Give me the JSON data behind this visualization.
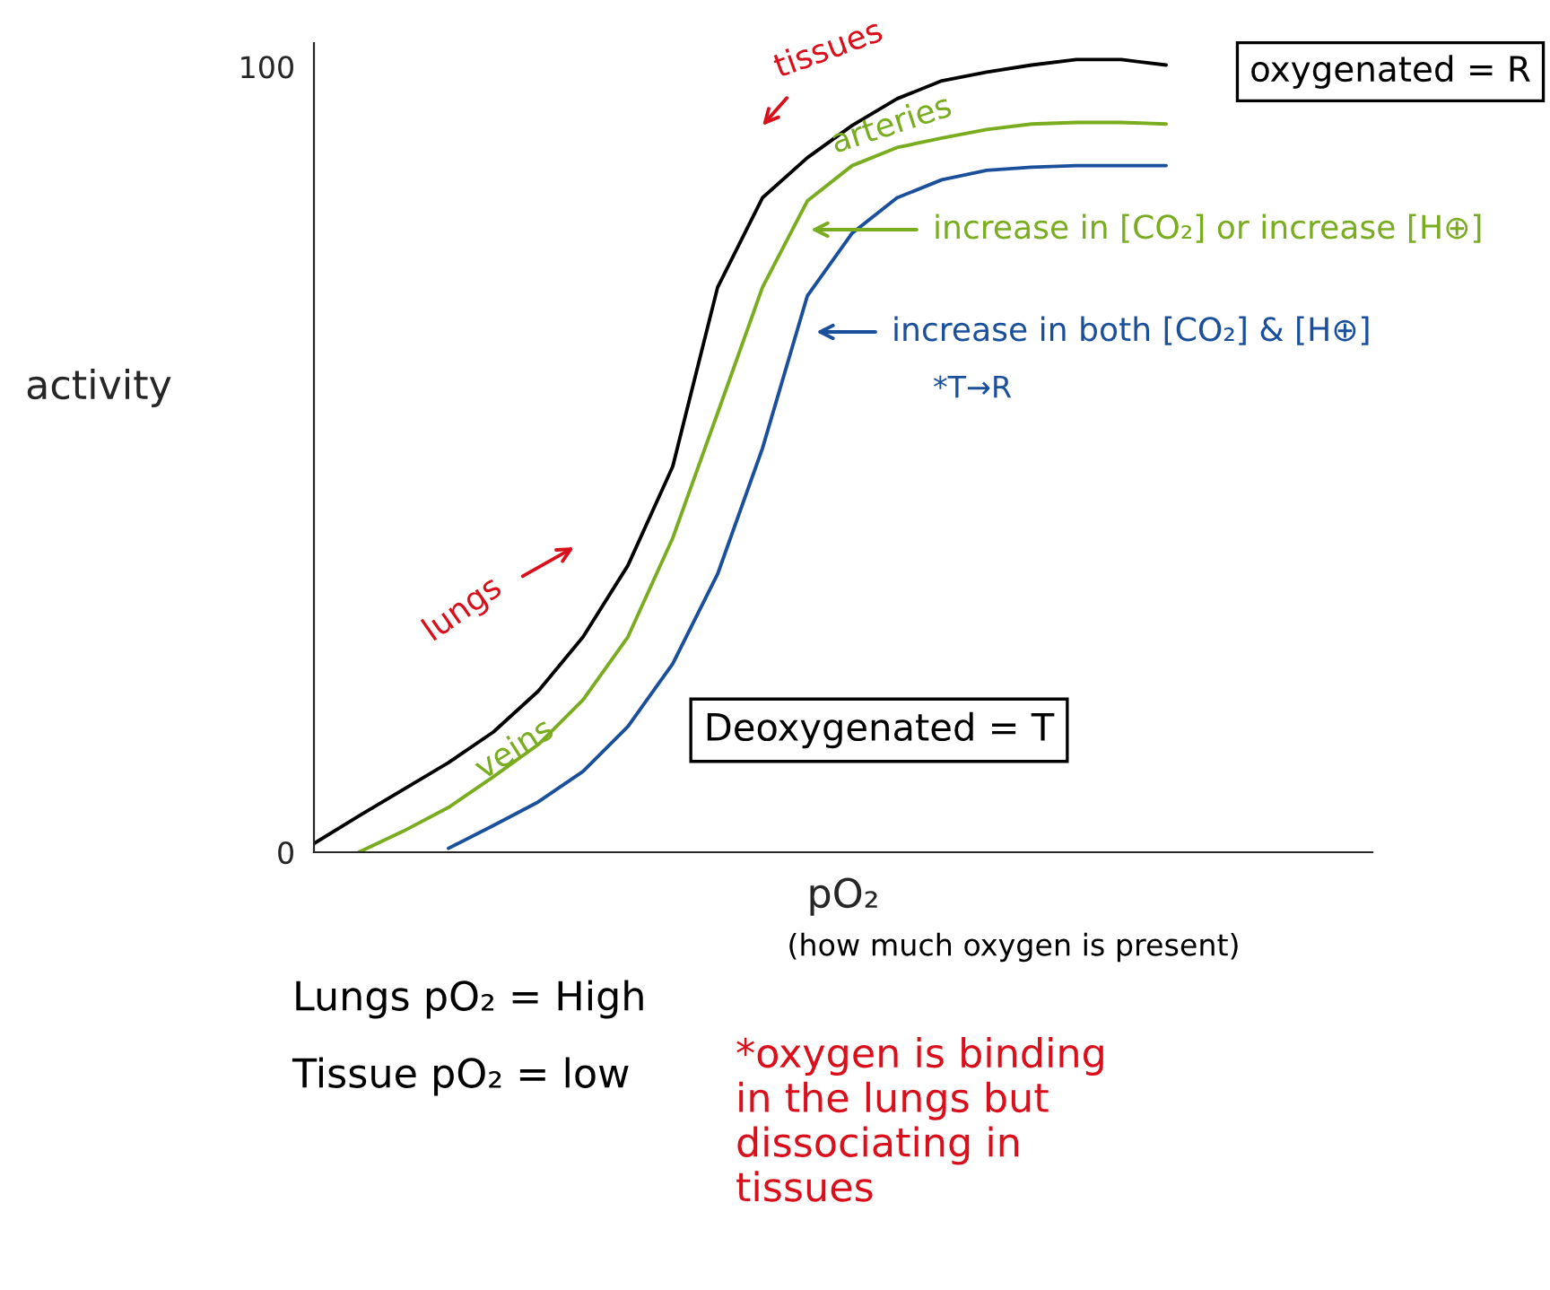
{
  "chart_data": {
    "type": "line",
    "categories": [
      null,
      null,
      null,
      null,
      null,
      null,
      null,
      null,
      null,
      null,
      null,
      null,
      null,
      null,
      null,
      null,
      null,
      null,
      null,
      null,
      null,
      null,
      null,
      null
    ],
    "series": [
      {
        "color": "#000000",
        "values": [
          1.1,
          4.6,
          8.0,
          11.4,
          15.3,
          20.5,
          27.4,
          36.5,
          49.1,
          71.9,
          83.3,
          88.4,
          92.5,
          95.9,
          98.2,
          99.3,
          100.2,
          100.9,
          100.9,
          100.2,
          null,
          null,
          null,
          null
        ]
      },
      {
        "color": "#7aac1f",
        "values": [
          null,
          0,
          2.7,
          5.7,
          9.6,
          13.7,
          19.4,
          27.4,
          40.0,
          55.9,
          71.9,
          82.9,
          87.4,
          89.7,
          90.9,
          92.0,
          92.7,
          92.9,
          92.9,
          92.7,
          null,
          null,
          null,
          null
        ]
      },
      {
        "color": "#1a4f9c",
        "values": [
          null,
          null,
          null,
          0.5,
          3.4,
          6.4,
          10.3,
          16.0,
          24.0,
          35.4,
          51.4,
          70.8,
          78.8,
          83.3,
          85.6,
          86.8,
          87.2,
          87.4,
          87.4,
          87.4,
          null,
          null,
          null,
          null
        ]
      }
    ],
    "ylim": [
      0,
      103
    ],
    "yticks": [
      0,
      100
    ],
    "xlabel": "pO₂",
    "ylabel": "activity",
    "annotations": [
      "tissues",
      "lungs",
      "arteries",
      "veins",
      "increase in [CO₂] or increase [H⊕]",
      "increase in both [CO₂] & [H⊕]",
      "*T→R",
      "oxygenated = R",
      "Deoxygenated = T",
      "Lungs pO₂ = High",
      "Tissue pO₂ = low",
      "*oxygen is binding\nin the lungs but\ndissociating in\ntissues",
      "(how much oxygen is present)"
    ],
    "tick_labels": "y",
    "grid": false,
    "legend": false,
    "marker": "none",
    "line_style": "solid"
  }
}
